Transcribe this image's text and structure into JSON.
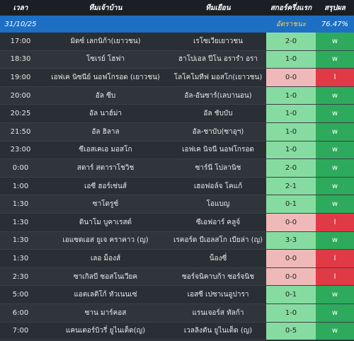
{
  "header": {
    "columns": [
      "เวลา",
      "ทีมเจ้าบ้าน",
      "ทีมเยือน",
      "สกอร์ครึ่งแรก",
      "สรุปผล"
    ]
  },
  "date_row": {
    "date": "31/10/25",
    "win_rate_label": "อัตราชนะ",
    "win_rate": "76.47%"
  },
  "table": {
    "rows": [
      [
        "17:00",
        "มิดซ์ เลกนิก้า(เยาวชน)",
        "เรโซเวียเยาวชน",
        "2-0",
        "w"
      ],
      [
        "18:30",
        "โซเรย์ โฮฟา",
        "ฮาโปเอล ปีโน อรารำ อรา",
        "1-0",
        "w"
      ],
      [
        "19:00",
        "เอฟเค นิซนีย์ นอฟโกรอด (เยาวชน)",
        "โลโคโมทีฟ มอสโก(เยาวชน)",
        "0-0",
        "l"
      ],
      [
        "20:00",
        "อัล ซีบ",
        "อัล-อันซาร์(เลบานอน)",
        "1-0",
        "w"
      ],
      [
        "20:25",
        "อัล นาฮ์ม่า",
        "อัล ชับบับ",
        "1-0",
        "w"
      ],
      [
        "21:50",
        "อัล ฮิลาล",
        "อัล-ชาบับ(ซาอุฯ)",
        "1-0",
        "w"
      ],
      [
        "23:00",
        "ซีเอสเคเอ มอสโก",
        "เอฟเค นิจนี นอฟโกรอด",
        "1-0",
        "w"
      ],
      [
        "0:00",
        "สตาร์ สตาราโชวิช",
        "ซาร์นี โปลานิช",
        "2-0",
        "w"
      ],
      [
        "1:00",
        "เอซี ฮอร์เซ่นส์",
        "เฮอฟอล์จ โคแก้",
        "2-1",
        "w"
      ],
      [
        "1:30",
        "ซาโดรูซ์",
        "โอแบญ",
        "0-1",
        "w"
      ],
      [
        "1:30",
        "ดินาโม บูคาเรสต์",
        "ซีเอฟอาร์ คลูจ์",
        "0-0",
        "l"
      ],
      [
        "1:30",
        "เอแซดเอส ยูเจ คราคาว (ญ)",
        "เรคอร์ด บีเอลสโก เบียล่า (ญ)",
        "3-3",
        "w"
      ],
      [
        "1:30",
        "เลอ ม็องส์",
        "น็องซี่",
        "0-0",
        "l"
      ],
      [
        "2:30",
        "ซาเกิลบี ซอสโนเวียค",
        "ซอร์จนิคาบก้า ซอร์จนิช",
        "0-0",
        "l"
      ],
      [
        "5:00",
        "แอตเลติโก้ ทัวเนนเซ่",
        "เอสซี เปซาเนอูปารา",
        "0-1",
        "w"
      ],
      [
        "6:00",
        "ซาน มาร์คอส",
        "แรนเจอร์ส ทัลก้า",
        "1-0",
        "w"
      ],
      [
        "7:00",
        "แคนเตอร์บิวรี่ ยูไนเต็ด(ญ)",
        "เวลลิงตัน ยูไนเต็ด (ญ)",
        "0-5",
        "w"
      ]
    ]
  }
}
